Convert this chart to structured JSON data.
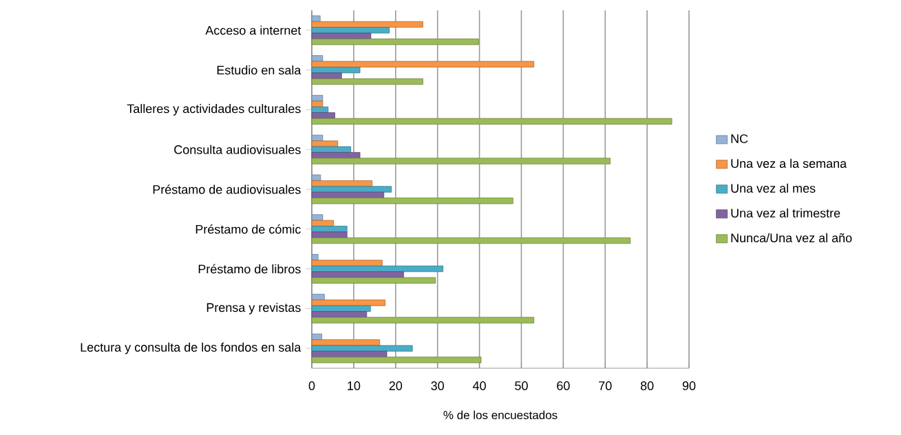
{
  "chart_data": {
    "type": "bar",
    "orientation": "horizontal",
    "xlabel": "% de los encuestados",
    "categories": [
      "Acceso a internet",
      "Estudio en sala",
      "Talleres y actividades culturales",
      "Consulta audiovisuales",
      "Préstamo de audiovisuales",
      "Préstamo de cómic",
      "Préstamo de libros",
      "Prensa y revistas",
      "Lectura y consulta de los fondos en sala"
    ],
    "series": [
      {
        "name": "NC",
        "color": "#95b3d7",
        "values": [
          2.0,
          2.6,
          2.6,
          2.6,
          2.1,
          2.6,
          1.5,
          3.0,
          2.4
        ]
      },
      {
        "name": "Una vez a la semana",
        "color": "#f79646",
        "values": [
          26.5,
          53.0,
          2.6,
          6.2,
          14.4,
          5.2,
          16.8,
          17.5,
          16.2
        ]
      },
      {
        "name": "Una vez al mes",
        "color": "#4bacc6",
        "values": [
          18.5,
          11.5,
          3.9,
          9.3,
          19.0,
          8.4,
          31.3,
          14.0,
          24.0
        ]
      },
      {
        "name": "Una vez al trimestre",
        "color": "#8064a2",
        "values": [
          14.1,
          7.1,
          5.5,
          11.5,
          17.2,
          8.4,
          21.9,
          13.1,
          17.9
        ]
      },
      {
        "name": "Nunca/Una vez al año",
        "color": "#9bbb59",
        "values": [
          39.8,
          26.5,
          85.9,
          71.2,
          48.0,
          76.0,
          29.5,
          53.0,
          40.4
        ]
      }
    ],
    "xlim": [
      0,
      90
    ],
    "xticks": [
      0,
      10,
      20,
      30,
      40,
      50,
      60,
      70,
      80,
      90
    ],
    "grid": "x",
    "legend": "right"
  }
}
